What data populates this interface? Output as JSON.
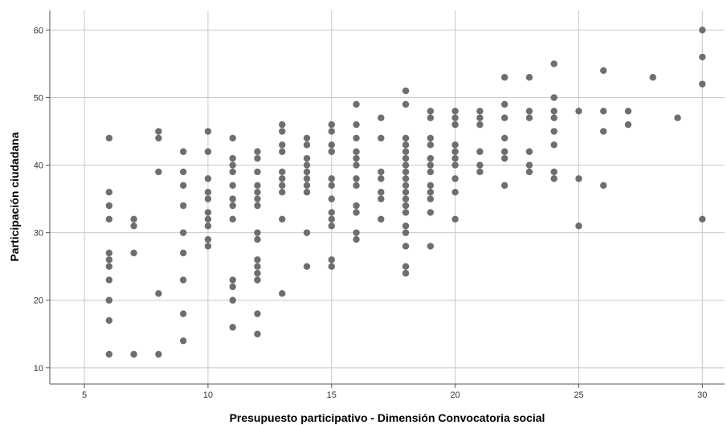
{
  "chart_data": {
    "type": "scatter",
    "title": "",
    "xlabel": "Presupuesto participativo - Dimensión Convocatoria social",
    "ylabel": "Participación ciudadana",
    "xlim": [
      3.6,
      30.9
    ],
    "ylim": [
      7.6,
      62.9
    ],
    "xticks": [
      5,
      10,
      15,
      20,
      25,
      30
    ],
    "yticks": [
      10,
      20,
      30,
      40,
      50,
      60
    ],
    "grid": true,
    "point_color": "#6e6e6e",
    "grid_color": "#c8c8c8",
    "points": [
      [
        6,
        44
      ],
      [
        6,
        36
      ],
      [
        6,
        34
      ],
      [
        6,
        32
      ],
      [
        6,
        27
      ],
      [
        6,
        26
      ],
      [
        6,
        25
      ],
      [
        6,
        23
      ],
      [
        6,
        20
      ],
      [
        6,
        17
      ],
      [
        6,
        12
      ],
      [
        7,
        32
      ],
      [
        7,
        31
      ],
      [
        7,
        27
      ],
      [
        7,
        12
      ],
      [
        8,
        45
      ],
      [
        8,
        44
      ],
      [
        8,
        39
      ],
      [
        8,
        21
      ],
      [
        8,
        12
      ],
      [
        9,
        42
      ],
      [
        9,
        39
      ],
      [
        9,
        37
      ],
      [
        9,
        34
      ],
      [
        9,
        30
      ],
      [
        9,
        27
      ],
      [
        9,
        23
      ],
      [
        9,
        18
      ],
      [
        9,
        14
      ],
      [
        10,
        45
      ],
      [
        10,
        42
      ],
      [
        10,
        38
      ],
      [
        10,
        36
      ],
      [
        10,
        35
      ],
      [
        10,
        33
      ],
      [
        10,
        32
      ],
      [
        10,
        31
      ],
      [
        10,
        29
      ],
      [
        10,
        28
      ],
      [
        11,
        44
      ],
      [
        11,
        41
      ],
      [
        11,
        40
      ],
      [
        11,
        39
      ],
      [
        11,
        37
      ],
      [
        11,
        35
      ],
      [
        11,
        34
      ],
      [
        11,
        32
      ],
      [
        11,
        23
      ],
      [
        11,
        22
      ],
      [
        11,
        20
      ],
      [
        11,
        16
      ],
      [
        12,
        42
      ],
      [
        12,
        41
      ],
      [
        12,
        39
      ],
      [
        12,
        37
      ],
      [
        12,
        36
      ],
      [
        12,
        35
      ],
      [
        12,
        34
      ],
      [
        12,
        30
      ],
      [
        12,
        29
      ],
      [
        12,
        26
      ],
      [
        12,
        25
      ],
      [
        12,
        24
      ],
      [
        12,
        23
      ],
      [
        12,
        18
      ],
      [
        12,
        15
      ],
      [
        13,
        46
      ],
      [
        13,
        45
      ],
      [
        13,
        43
      ],
      [
        13,
        42
      ],
      [
        13,
        39
      ],
      [
        13,
        38
      ],
      [
        13,
        37
      ],
      [
        13,
        36
      ],
      [
        13,
        32
      ],
      [
        13,
        21
      ],
      [
        14,
        44
      ],
      [
        14,
        43
      ],
      [
        14,
        41
      ],
      [
        14,
        40
      ],
      [
        14,
        39
      ],
      [
        14,
        38
      ],
      [
        14,
        37
      ],
      [
        14,
        36
      ],
      [
        14,
        30
      ],
      [
        14,
        25
      ],
      [
        15,
        46
      ],
      [
        15,
        45
      ],
      [
        15,
        43
      ],
      [
        15,
        42
      ],
      [
        15,
        38
      ],
      [
        15,
        37
      ],
      [
        15,
        35
      ],
      [
        15,
        33
      ],
      [
        15,
        32
      ],
      [
        15,
        31
      ],
      [
        15,
        26
      ],
      [
        15,
        25
      ],
      [
        16,
        49
      ],
      [
        16,
        46
      ],
      [
        16,
        44
      ],
      [
        16,
        42
      ],
      [
        16,
        41
      ],
      [
        16,
        40
      ],
      [
        16,
        38
      ],
      [
        16,
        37
      ],
      [
        16,
        34
      ],
      [
        16,
        33
      ],
      [
        16,
        30
      ],
      [
        16,
        29
      ],
      [
        17,
        47
      ],
      [
        17,
        44
      ],
      [
        17,
        39
      ],
      [
        17,
        38
      ],
      [
        17,
        36
      ],
      [
        17,
        35
      ],
      [
        17,
        32
      ],
      [
        18,
        51
      ],
      [
        18,
        49
      ],
      [
        18,
        44
      ],
      [
        18,
        43
      ],
      [
        18,
        42
      ],
      [
        18,
        41
      ],
      [
        18,
        40
      ],
      [
        18,
        39
      ],
      [
        18,
        38
      ],
      [
        18,
        37
      ],
      [
        18,
        36
      ],
      [
        18,
        35
      ],
      [
        18,
        34
      ],
      [
        18,
        33
      ],
      [
        18,
        31
      ],
      [
        18,
        30
      ],
      [
        18,
        28
      ],
      [
        18,
        25
      ],
      [
        18,
        24
      ],
      [
        19,
        48
      ],
      [
        19,
        47
      ],
      [
        19,
        44
      ],
      [
        19,
        43
      ],
      [
        19,
        41
      ],
      [
        19,
        40
      ],
      [
        19,
        39
      ],
      [
        19,
        37
      ],
      [
        19,
        36
      ],
      [
        19,
        35
      ],
      [
        19,
        33
      ],
      [
        19,
        28
      ],
      [
        20,
        48
      ],
      [
        20,
        47
      ],
      [
        20,
        46
      ],
      [
        20,
        43
      ],
      [
        20,
        42
      ],
      [
        20,
        41
      ],
      [
        20,
        40
      ],
      [
        20,
        38
      ],
      [
        20,
        36
      ],
      [
        20,
        32
      ],
      [
        21,
        48
      ],
      [
        21,
        47
      ],
      [
        21,
        46
      ],
      [
        21,
        42
      ],
      [
        21,
        40
      ],
      [
        21,
        39
      ],
      [
        22,
        53
      ],
      [
        22,
        49
      ],
      [
        22,
        47
      ],
      [
        22,
        44
      ],
      [
        22,
        42
      ],
      [
        22,
        41
      ],
      [
        22,
        37
      ],
      [
        23,
        53
      ],
      [
        23,
        48
      ],
      [
        23,
        47
      ],
      [
        23,
        42
      ],
      [
        23,
        40
      ],
      [
        23,
        39
      ],
      [
        24,
        55
      ],
      [
        24,
        50
      ],
      [
        24,
        48
      ],
      [
        24,
        47
      ],
      [
        24,
        45
      ],
      [
        24,
        43
      ],
      [
        24,
        39
      ],
      [
        24,
        38
      ],
      [
        25,
        48
      ],
      [
        25,
        38
      ],
      [
        25,
        31
      ],
      [
        26,
        54
      ],
      [
        26,
        48
      ],
      [
        26,
        45
      ],
      [
        26,
        37
      ],
      [
        27,
        48
      ],
      [
        27,
        46
      ],
      [
        28,
        53
      ],
      [
        29,
        47
      ],
      [
        30,
        60
      ],
      [
        30,
        56
      ],
      [
        30,
        52
      ],
      [
        30,
        32
      ]
    ]
  }
}
